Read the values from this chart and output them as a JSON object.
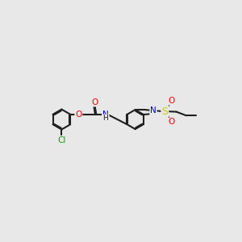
{
  "bg_color": "#e8e8e8",
  "bond_color": "#202020",
  "bond_lw": 1.5,
  "atom_colors": {
    "O": "#ff0000",
    "N": "#0000cc",
    "S": "#cccc00",
    "Cl": "#00aa00",
    "H": "#202020",
    "C": "#202020"
  },
  "font_size": 7.5
}
